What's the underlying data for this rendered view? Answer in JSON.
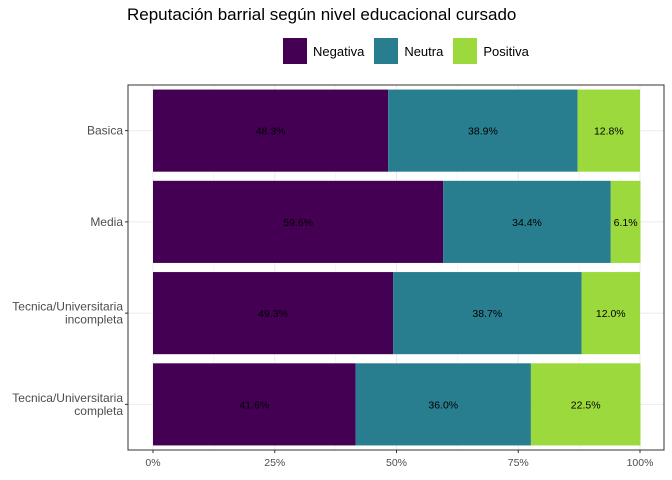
{
  "chart_data": {
    "type": "bar",
    "orientation": "horizontal",
    "stacked": true,
    "title": "Reputación barrial según nivel educacional cursado",
    "xlabel": "",
    "ylabel": "",
    "xlim": [
      0,
      100
    ],
    "x_ticks": [
      "0%",
      "25%",
      "50%",
      "75%",
      "100%"
    ],
    "legend_position": "top",
    "grid": true,
    "categories": [
      [
        "Basica"
      ],
      [
        "Media"
      ],
      [
        "Tecnica/Universitaria",
        "incompleta"
      ],
      [
        "Tecnica/Universitaria",
        "completa"
      ]
    ],
    "series": [
      {
        "name": "Negativa",
        "color": "#440154",
        "values": [
          48.3,
          59.6,
          49.3,
          41.6
        ],
        "labels": [
          "48.3%",
          "59.6%",
          "49.3%",
          "41.6%"
        ]
      },
      {
        "name": "Neutra",
        "color": "#287d8e",
        "values": [
          38.9,
          34.4,
          38.7,
          36.0
        ],
        "labels": [
          "38.9%",
          "34.4%",
          "38.7%",
          "36.0%"
        ]
      },
      {
        "name": "Positiva",
        "color": "#9bd93c",
        "values": [
          12.8,
          6.1,
          12.0,
          22.5
        ],
        "labels": [
          "12.8%",
          "6.1%",
          "12.0%",
          "22.5%"
        ]
      }
    ]
  }
}
